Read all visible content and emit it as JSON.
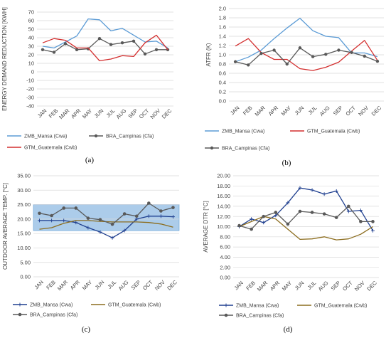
{
  "chart_data": [
    {
      "type": "line",
      "panel_label": "(a)",
      "categories": [
        "JAN",
        "FEB",
        "MAR",
        "APR",
        "MAY",
        "JUN",
        "JUL",
        "AUG",
        "SEP",
        "OCT",
        "NOV",
        "DEC"
      ],
      "ylabel": "ENERGY DEMAND REDUCTION [KWH]",
      "ylim": [
        -40,
        70
      ],
      "yticks": [
        70,
        60,
        50,
        40,
        30,
        20,
        10,
        0,
        -10,
        -20,
        -30,
        -40
      ],
      "grid": true,
      "legend_position": "bottom",
      "series": [
        {
          "name": "ZMB_Mansa (Cwa)",
          "color": "#5b9bd5",
          "marker": "none",
          "values": [
            30,
            28,
            35,
            42,
            62,
            61,
            48,
            51,
            43,
            35,
            36,
            28
          ]
        },
        {
          "name": "BRA_Campinas (Cfa)",
          "color": "#595959",
          "marker": "circle",
          "values": [
            26,
            23,
            33,
            26,
            27,
            39,
            32,
            34,
            36,
            21,
            26,
            26
          ]
        },
        {
          "name": "GTM_Guatemala (Cwb)",
          "color": "#d32f2f",
          "marker": "none",
          "values": [
            34,
            39,
            37,
            28,
            28,
            13,
            15,
            19,
            18,
            34,
            43,
            26
          ]
        }
      ]
    },
    {
      "type": "line",
      "panel_label": "(b)",
      "categories": [
        "JAN",
        "FEB",
        "MAR",
        "APR",
        "MAY",
        "JUN",
        "JUL",
        "AUG",
        "SEP",
        "OCT",
        "NOV",
        "DEC"
      ],
      "ylabel": "ATFR (K)",
      "ylim": [
        0,
        2.0
      ],
      "yticks": [
        "2.0",
        "1.8",
        "1.6",
        "1.4",
        "1.2",
        "1.0",
        "0.8",
        "0.6",
        "0.4",
        "0.2",
        "0.0"
      ],
      "grid": true,
      "legend_position": "bottom",
      "series": [
        {
          "name": "ZMB_Mansa (Cwa)",
          "color": "#5b9bd5",
          "marker": "none",
          "values": [
            0.85,
            0.95,
            1.1,
            1.35,
            1.58,
            1.79,
            1.52,
            1.4,
            1.37,
            1.04,
            1.04,
            0.96
          ]
        },
        {
          "name": "GTM_Guatemala (Cwb)",
          "color": "#d32f2f",
          "marker": "none",
          "values": [
            1.19,
            1.35,
            1.05,
            0.9,
            0.9,
            0.7,
            0.66,
            0.73,
            0.84,
            1.08,
            1.31,
            0.88
          ]
        },
        {
          "name": "BRA_Campinas (Cfa)",
          "color": "#595959",
          "marker": "circle",
          "values": [
            0.85,
            0.78,
            1.03,
            1.1,
            0.8,
            1.15,
            0.96,
            1.01,
            1.1,
            1.05,
            0.97,
            0.86
          ]
        }
      ]
    },
    {
      "type": "line",
      "panel_label": "(c)",
      "categories": [
        "JAN",
        "FEB",
        "MAR",
        "APR",
        "MAY",
        "JUN",
        "JUL",
        "AUG",
        "SEP",
        "OCT",
        "NOV",
        "DEC"
      ],
      "ylabel": "OUTDOOR AVERAGE TEMP. [°C]",
      "ylim": [
        0,
        35
      ],
      "yticks": [
        "35.00",
        "30.00",
        "25.00",
        "20.00",
        "15.00",
        "10.00",
        "5.00",
        "0.00"
      ],
      "grid": true,
      "comfort_band": [
        16,
        25
      ],
      "legend_position": "bottom",
      "series": [
        {
          "name": "ZMB_Mansa (Cwa)",
          "color": "#1f3f8f",
          "marker": "plus",
          "values": [
            19.5,
            19.5,
            19.5,
            18.8,
            17.0,
            15.5,
            13.5,
            16.0,
            20.0,
            21.0,
            21.0,
            20.8
          ]
        },
        {
          "name": "GTM_Guatemala (Cwb)",
          "color": "#8c6d1f",
          "marker": "none",
          "values": [
            16.5,
            17.0,
            18.5,
            19.5,
            19.5,
            19.2,
            19.0,
            19.0,
            19.0,
            18.8,
            18.3,
            17.2
          ]
        },
        {
          "name": "BRA_Campinas (Cfa)",
          "color": "#595959",
          "marker": "circle",
          "values": [
            22.0,
            21.2,
            23.8,
            23.8,
            20.3,
            19.8,
            18.2,
            21.8,
            21.0,
            25.5,
            22.8,
            24.0
          ]
        }
      ]
    },
    {
      "type": "line",
      "panel_label": "(d)",
      "categories": [
        "JAN",
        "FEB",
        "MAR",
        "APR",
        "MAY",
        "JUN",
        "JUL",
        "AUG",
        "SEP",
        "OCT",
        "NOV",
        "DEC"
      ],
      "ylabel": "AVERAGE DTR [°C]",
      "ylim": [
        0,
        20
      ],
      "yticks": [
        "20.00",
        "18.00",
        "16.00",
        "14.00",
        "12.00",
        "10.00",
        "8.00",
        "6.00",
        "4.00",
        "2.00",
        "0.00"
      ],
      "grid": true,
      "legend_position": "bottom",
      "series": [
        {
          "name": "ZMB_Mansa (Cwa)",
          "color": "#1f3f8f",
          "marker": "plus",
          "values": [
            10.0,
            11.5,
            10.8,
            12.2,
            14.7,
            17.6,
            17.2,
            16.4,
            17.0,
            13.0,
            13.2,
            9.2
          ]
        },
        {
          "name": "GTM_Guatemala (Cwb)",
          "color": "#8c6d1f",
          "marker": "none",
          "values": [
            10.0,
            11.0,
            12.0,
            11.5,
            9.5,
            7.5,
            7.6,
            8.0,
            7.4,
            7.6,
            8.5,
            10.0
          ]
        },
        {
          "name": "BRA_Campinas (Cfa)",
          "color": "#595959",
          "marker": "circle",
          "values": [
            10.2,
            9.5,
            12.0,
            12.8,
            10.5,
            13.0,
            12.8,
            12.5,
            11.8,
            14.0,
            11.0,
            11.0
          ]
        }
      ]
    }
  ]
}
